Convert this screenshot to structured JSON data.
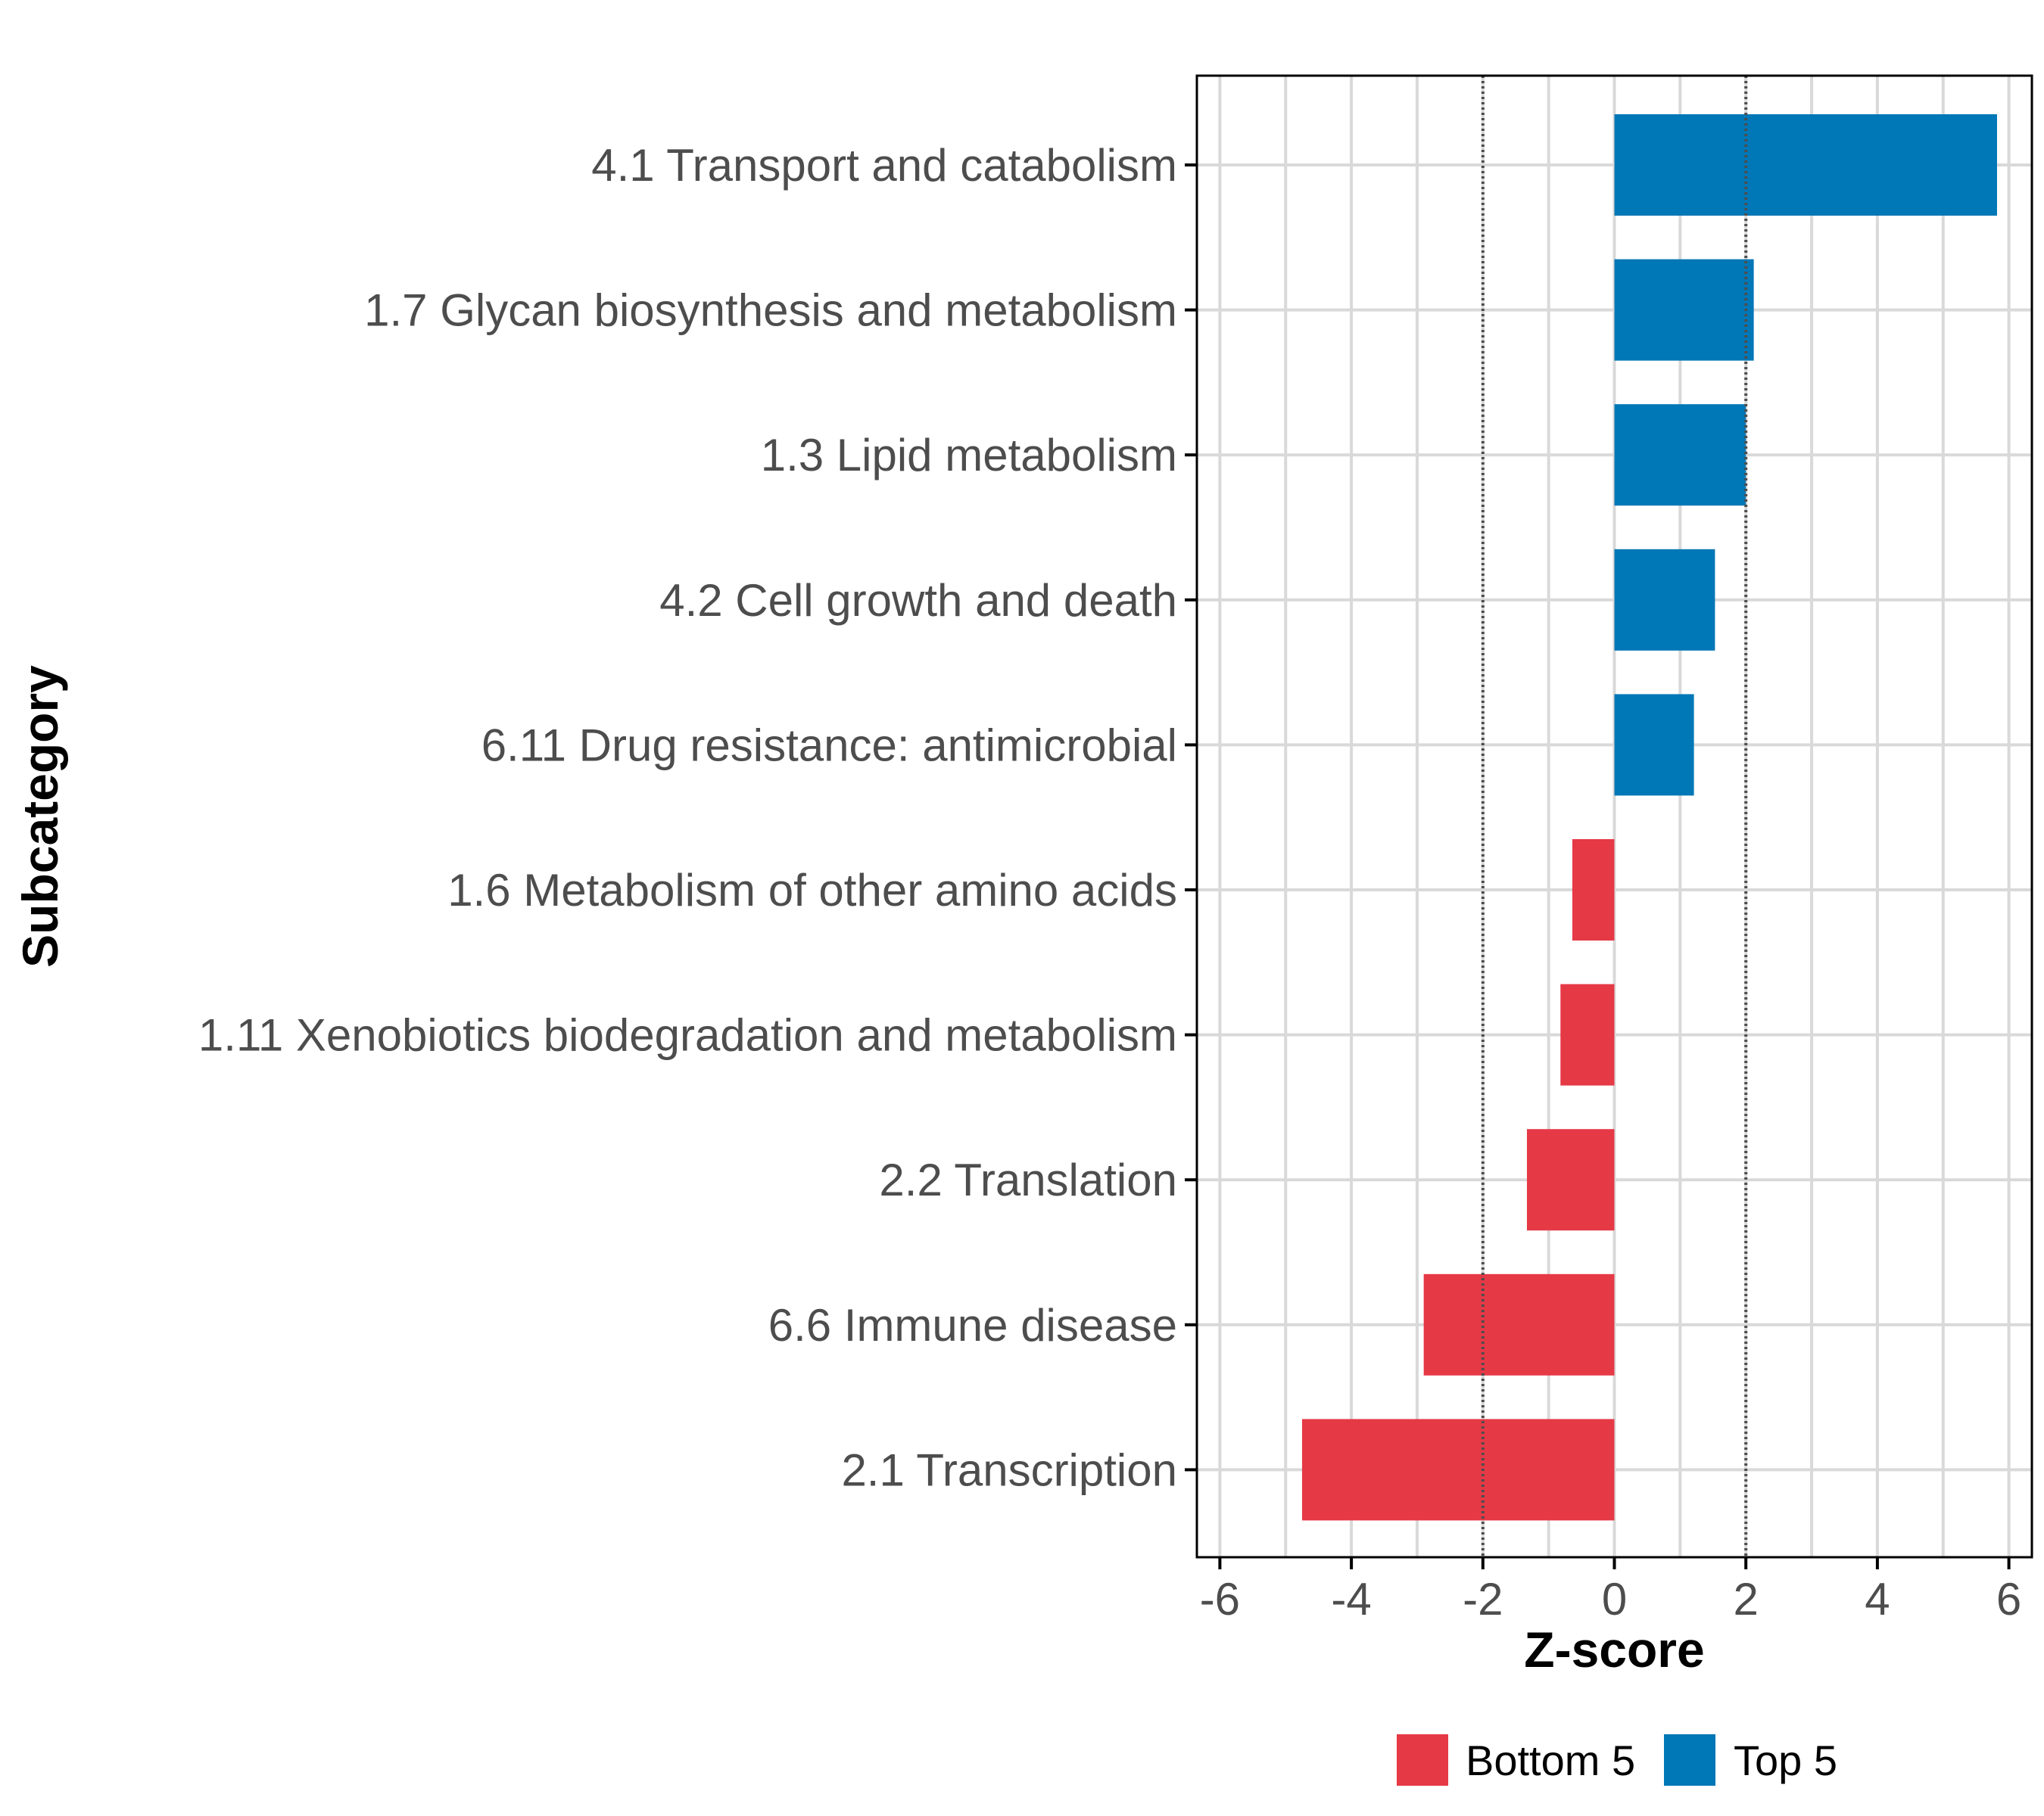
{
  "chart_data": {
    "type": "bar",
    "orientation": "horizontal",
    "title": "",
    "xlabel": "Z-score",
    "ylabel": "Subcategory",
    "xlim": [
      -6.35,
      6.35
    ],
    "xticks": [
      -6,
      -4,
      -2,
      0,
      2,
      4,
      6
    ],
    "xtick_labels": [
      "-6",
      "-4",
      "-2",
      "0",
      "2",
      "4",
      "6"
    ],
    "reference_lines": [
      -2,
      2
    ],
    "grid": true,
    "legend_position": "bottom",
    "categories": [
      "4.1 Transport and catabolism",
      "1.7 Glycan biosynthesis and metabolism",
      "1.3 Lipid metabolism",
      "4.2 Cell growth and death",
      "6.11 Drug resistance: antimicrobial",
      "1.6 Metabolism of other amino acids",
      "1.11 Xenobiotics biodegradation and metabolism",
      "2.2 Translation",
      "6.6 Immune disease",
      "2.1 Transcription"
    ],
    "values": [
      5.82,
      2.12,
      2.0,
      1.53,
      1.21,
      -0.64,
      -0.82,
      -1.33,
      -2.9,
      -4.75
    ],
    "groups": [
      "Top 5",
      "Top 5",
      "Top 5",
      "Top 5",
      "Top 5",
      "Bottom 5",
      "Bottom 5",
      "Bottom 5",
      "Bottom 5",
      "Bottom 5"
    ],
    "legend": [
      {
        "label": "Bottom 5",
        "color": "#E63946"
      },
      {
        "label": "Top 5",
        "color": "#0077B6"
      }
    ]
  },
  "colors": {
    "grid": "#d9d9d9",
    "axis": "#000000",
    "reference_line": "#4d4d4d"
  }
}
